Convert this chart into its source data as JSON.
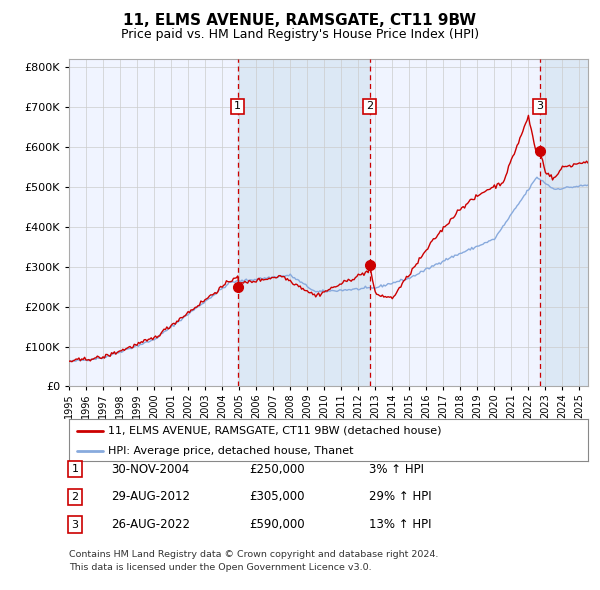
{
  "title": "11, ELMS AVENUE, RAMSGATE, CT11 9BW",
  "subtitle": "Price paid vs. HM Land Registry's House Price Index (HPI)",
  "legend_line1": "11, ELMS AVENUE, RAMSGATE, CT11 9BW (detached house)",
  "legend_line2": "HPI: Average price, detached house, Thanet",
  "footnote1": "Contains HM Land Registry data © Crown copyright and database right 2024.",
  "footnote2": "This data is licensed under the Open Government Licence v3.0.",
  "transactions": [
    {
      "num": 1,
      "date": "30-NOV-2004",
      "price": 250000,
      "pct": "3%",
      "dir": "↑"
    },
    {
      "num": 2,
      "date": "29-AUG-2012",
      "price": 305000,
      "pct": "29%",
      "dir": "↑"
    },
    {
      "num": 3,
      "date": "26-AUG-2022",
      "price": 590000,
      "pct": "13%",
      "dir": "↑"
    }
  ],
  "transaction_dates_decimal": [
    2004.917,
    2012.664,
    2022.661
  ],
  "ylim": [
    0,
    820000
  ],
  "xlim_start": 1995.0,
  "xlim_end": 2025.5,
  "background_color": "#ffffff",
  "plot_bg": "#f0f4ff",
  "shaded_bg": "#dce8f5",
  "grid_color": "#cccccc",
  "hpi_color": "#88aadd",
  "price_color": "#cc0000",
  "dashed_line_color": "#cc0000",
  "marker_color": "#cc0000",
  "box_color": "#cc0000"
}
